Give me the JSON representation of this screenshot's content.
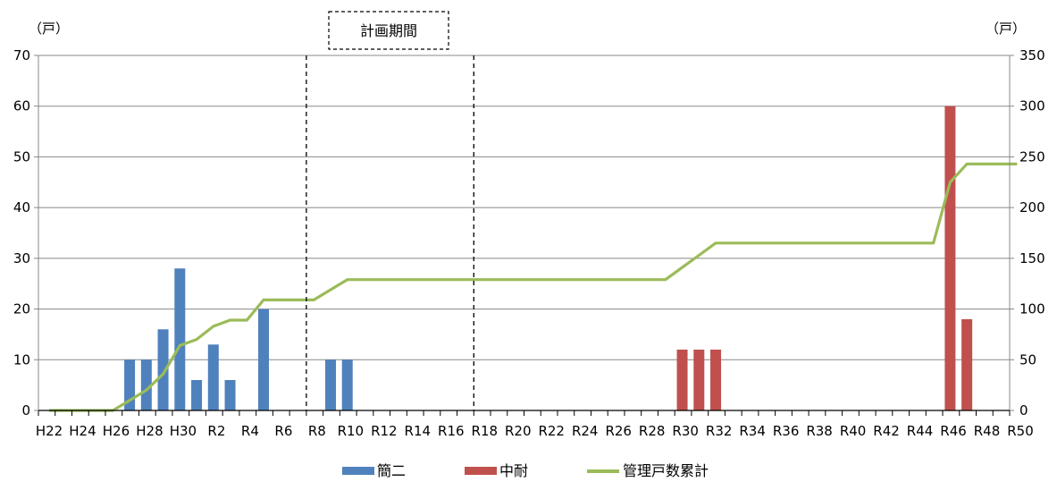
{
  "chart_data": {
    "type": "bar",
    "left_unit": "（戸）",
    "right_unit": "（戸）",
    "period_label": "計画期間",
    "y_left_ticks": [
      "0",
      "10",
      "20",
      "30",
      "40",
      "50",
      "60",
      "70"
    ],
    "y_right_ticks": [
      "0",
      "50",
      "100",
      "150",
      "200",
      "250",
      "300",
      "350"
    ],
    "ylim_left": [
      0,
      70
    ],
    "ylim_right": [
      0,
      350
    ],
    "categories": [
      "H22",
      "H23",
      "H24",
      "H25",
      "H26",
      "H27",
      "H28",
      "H29",
      "H30",
      "R1",
      "R2",
      "R3",
      "R4",
      "R5",
      "R6",
      "R7",
      "R8",
      "R9",
      "R10",
      "R11",
      "R12",
      "R13",
      "R14",
      "R15",
      "R16",
      "R17",
      "R18",
      "R19",
      "R20",
      "R21",
      "R22",
      "R23",
      "R24",
      "R25",
      "R26",
      "R27",
      "R28",
      "R29",
      "R30",
      "R31",
      "R32",
      "R33",
      "R34",
      "R35",
      "R36",
      "R37",
      "R38",
      "R39",
      "R40",
      "R41",
      "R42",
      "R43",
      "R44",
      "R45",
      "R46",
      "R47",
      "R48",
      "R49",
      "R50"
    ],
    "x_tick_labels": [
      "H22",
      "H24",
      "H26",
      "H28",
      "H30",
      "R2",
      "R4",
      "R6",
      "R8",
      "R10",
      "R12",
      "R14",
      "R16",
      "R18",
      "R20",
      "R22",
      "R24",
      "R26",
      "R28",
      "R30",
      "R32",
      "R34",
      "R36",
      "R38",
      "R40",
      "R42",
      "R44",
      "R46",
      "R48",
      "R50"
    ],
    "period_range": [
      "R7",
      "R17"
    ],
    "series": [
      {
        "name": "簡二",
        "type": "bar",
        "axis": "left",
        "color": "#4f81bd",
        "values": [
          0,
          0,
          0,
          0,
          0,
          10,
          10,
          16,
          28,
          6,
          13,
          6,
          0,
          20,
          0,
          0,
          0,
          10,
          10,
          0,
          0,
          0,
          0,
          0,
          0,
          0,
          0,
          0,
          0,
          0,
          0,
          0,
          0,
          0,
          0,
          0,
          0,
          0,
          0,
          0,
          0,
          0,
          0,
          0,
          0,
          0,
          0,
          0,
          0,
          0,
          0,
          0,
          0,
          0,
          0,
          0,
          0,
          0,
          0
        ]
      },
      {
        "name": "中耐",
        "type": "bar",
        "axis": "left",
        "color": "#c0504d",
        "values": [
          0,
          0,
          0,
          0,
          0,
          0,
          0,
          0,
          0,
          0,
          0,
          0,
          0,
          0,
          0,
          0,
          0,
          0,
          0,
          0,
          0,
          0,
          0,
          0,
          0,
          0,
          0,
          0,
          0,
          0,
          0,
          0,
          0,
          0,
          0,
          0,
          0,
          0,
          12,
          12,
          12,
          0,
          0,
          0,
          0,
          0,
          0,
          0,
          0,
          0,
          0,
          0,
          0,
          0,
          60,
          18,
          0,
          0,
          0
        ]
      },
      {
        "name": "管理戸数累計",
        "type": "line",
        "axis": "right",
        "color": "#9bbb59",
        "values": [
          0,
          0,
          0,
          0,
          0,
          10,
          20,
          36,
          64,
          70,
          83,
          89,
          89,
          109,
          109,
          109,
          109,
          119,
          129,
          129,
          129,
          129,
          129,
          129,
          129,
          129,
          129,
          129,
          129,
          129,
          129,
          129,
          129,
          129,
          129,
          129,
          129,
          129,
          141,
          153,
          165,
          165,
          165,
          165,
          165,
          165,
          165,
          165,
          165,
          165,
          165,
          165,
          165,
          165,
          225,
          243,
          243,
          243,
          243
        ]
      }
    ]
  }
}
